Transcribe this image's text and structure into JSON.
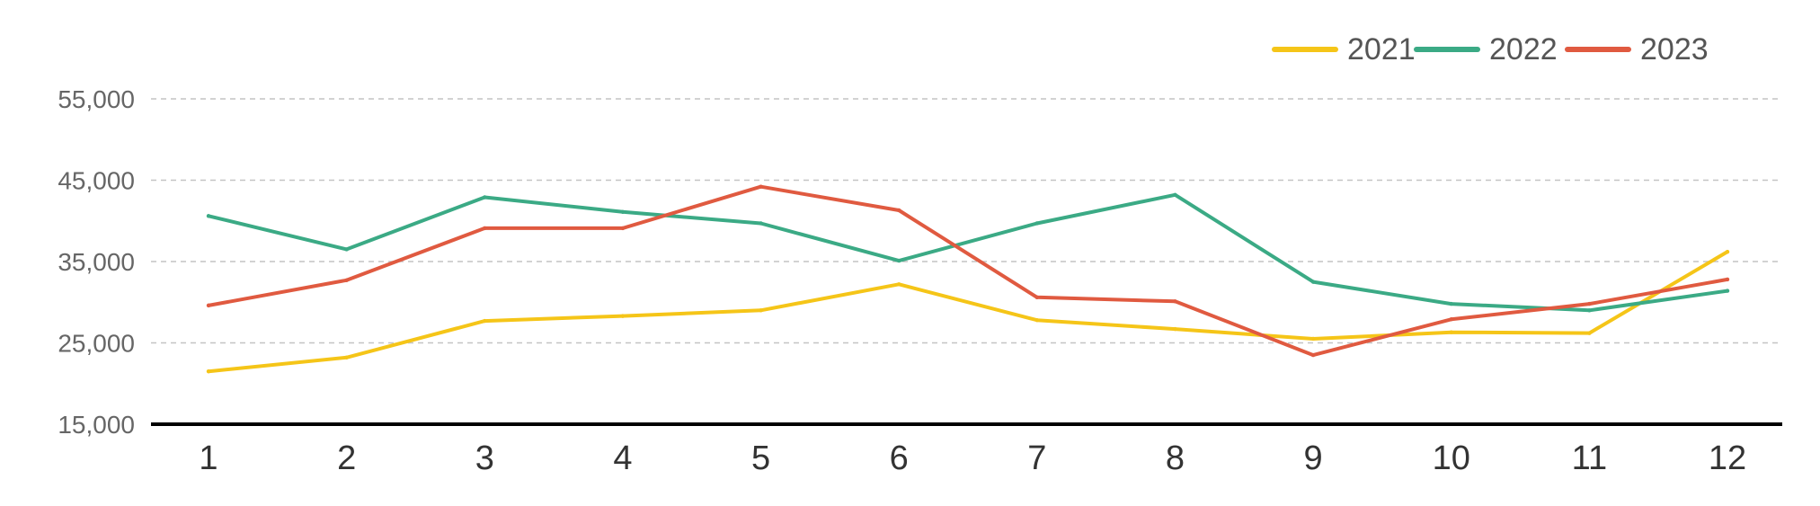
{
  "chart_data": {
    "type": "line",
    "title": "",
    "xlabel": "",
    "ylabel": "",
    "x": [
      "1",
      "2",
      "3",
      "4",
      "5",
      "6",
      "7",
      "8",
      "9",
      "10",
      "11",
      "12"
    ],
    "ylim": [
      15000,
      55000
    ],
    "yticks": [
      {
        "value": 15000,
        "label": "15,000"
      },
      {
        "value": 25000,
        "label": "25,000"
      },
      {
        "value": 35000,
        "label": "35,000"
      },
      {
        "value": 45000,
        "label": "45,000"
      },
      {
        "value": 55000,
        "label": "55,000"
      }
    ],
    "grid": "horizontal dashed",
    "legend_position": "top-right",
    "series": [
      {
        "name": "2021",
        "color": "#F5C518",
        "values": [
          21500,
          23200,
          27700,
          28300,
          29000,
          32200,
          27800,
          26700,
          25500,
          26300,
          26200,
          36200
        ]
      },
      {
        "name": "2022",
        "color": "#3BAA85",
        "values": [
          40600,
          36500,
          42900,
          41100,
          39700,
          35100,
          39700,
          43200,
          32500,
          29800,
          29000,
          31400
        ]
      },
      {
        "name": "2023",
        "color": "#E05A40",
        "values": [
          29600,
          32700,
          39100,
          39100,
          44200,
          41300,
          30600,
          30100,
          23500,
          27900,
          29800,
          32800
        ]
      }
    ]
  }
}
